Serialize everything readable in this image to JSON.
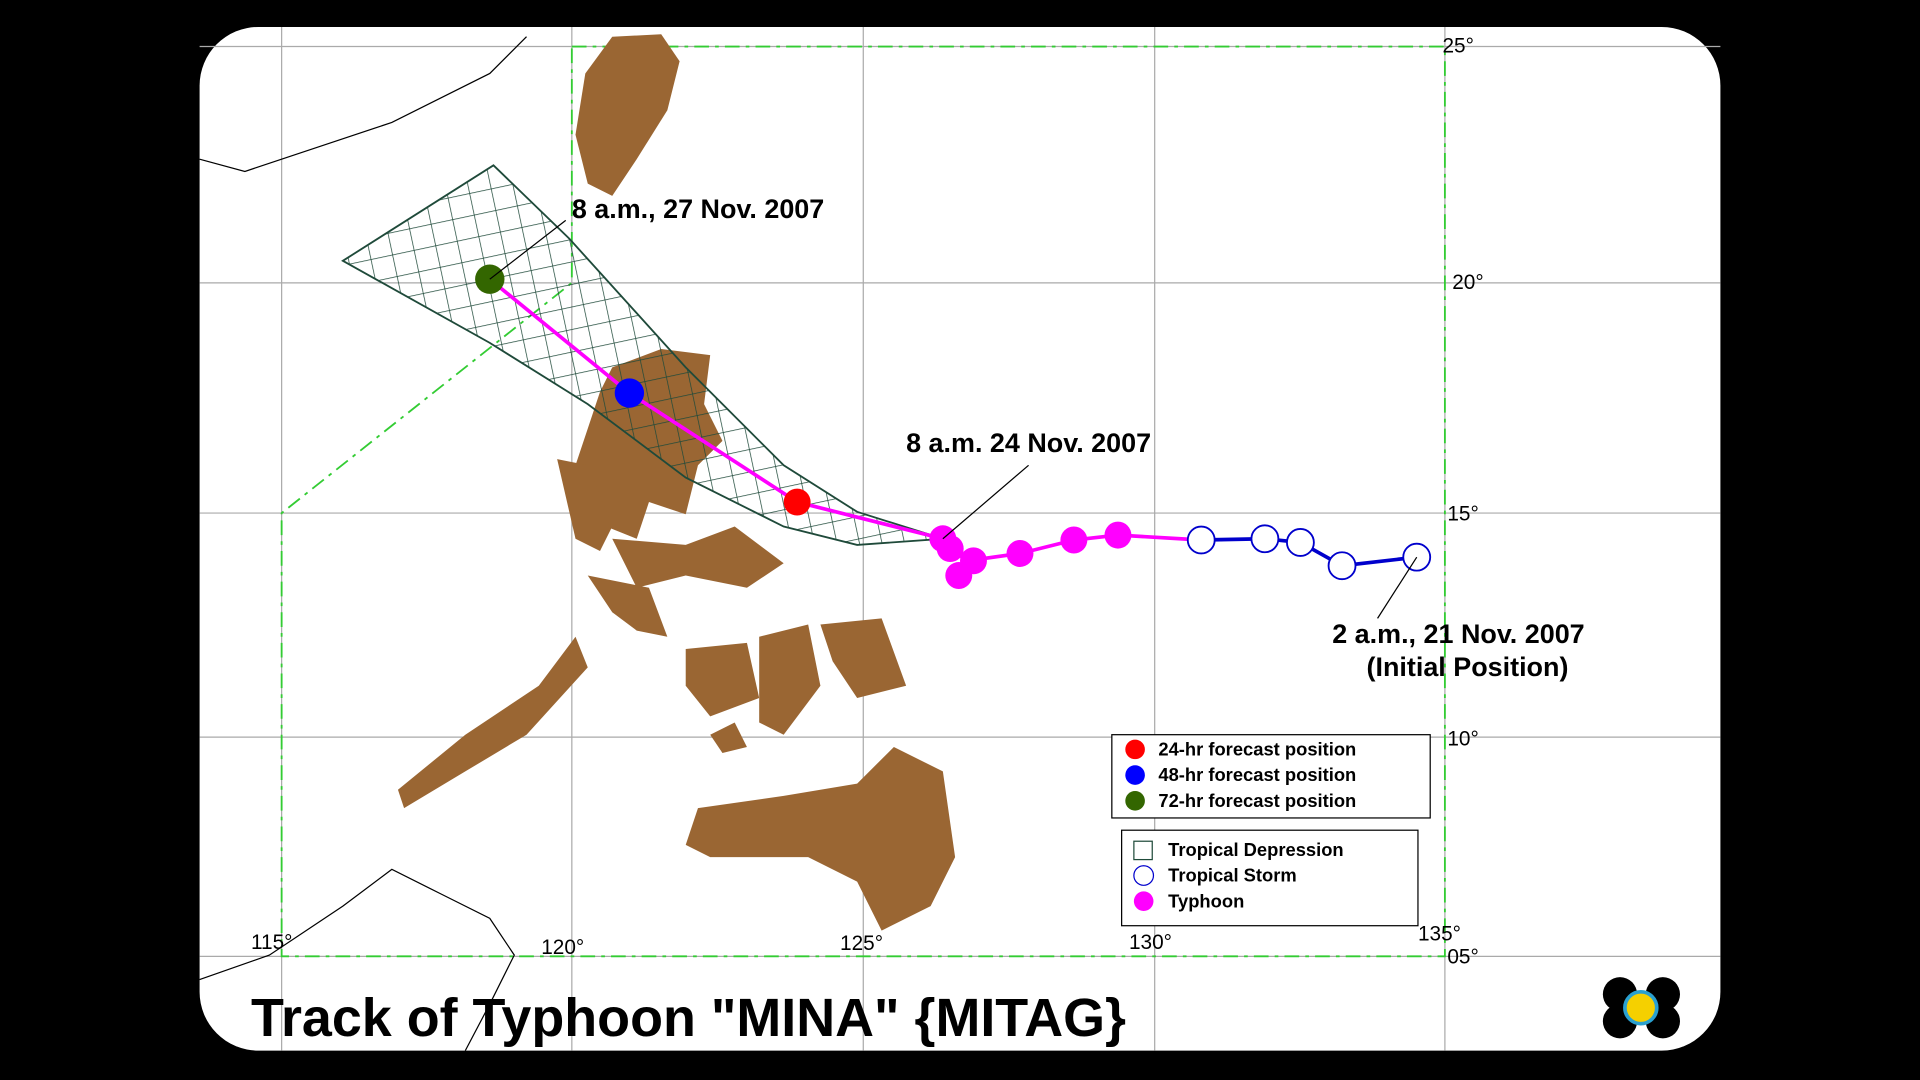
{
  "title": "Track of Typhoon \"MINA\" {MITAG}",
  "annotations": [
    "8 a.m., 27 Nov. 2007",
    "8 a.m. 24 Nov. 2007",
    "2 a.m., 21 Nov. 2007",
    "(Initial Position)"
  ],
  "legend_forecast": [
    "24-hr forecast position",
    "48-hr forecast position",
    "72-hr forecast position"
  ],
  "legend_intensity": [
    "Tropical Depression",
    "Tropical Storm",
    "Typhoon"
  ],
  "latitude_labels": [
    "25°",
    "20°",
    "15°",
    "10°",
    "05°"
  ],
  "longitude_labels": [
    "115°",
    "120°",
    "125°",
    "130°",
    "135°"
  ]
}
